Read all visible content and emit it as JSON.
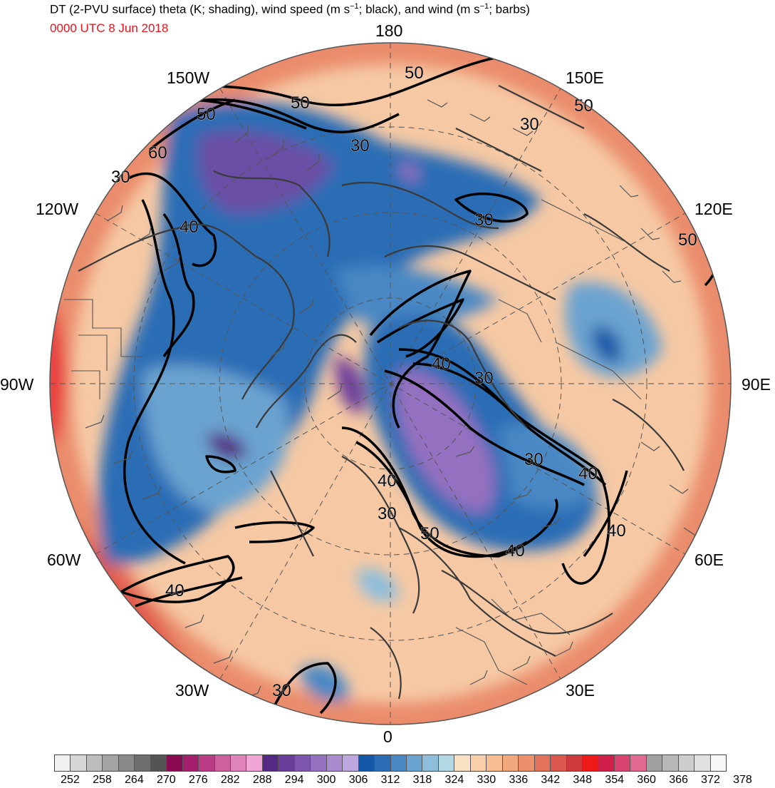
{
  "header": {
    "title_main": "DT (2-PVU surface) theta (K; shading), wind speed (m s",
    "title_sup1": "−1",
    "title_mid": "; black), and wind (m s",
    "title_sup2": "−1",
    "title_end": "; barbs)",
    "valid_time": "0000 UTC 8 Jun 2018",
    "valid_time_color": "#e8141c"
  },
  "map": {
    "projection": "north polar stereographic",
    "longitude_labels": {
      "top": "180",
      "bottom": "0",
      "left": "90W",
      "right": "90E",
      "upper_left_1": "150W",
      "upper_left_2": "120W",
      "lower_left_1": "60W",
      "lower_left_2": "30W",
      "upper_right_1": "150E",
      "upper_right_2": "120E",
      "lower_right_1": "60E",
      "lower_right_2": "30E"
    },
    "contour_labels": [
      "50",
      "50",
      "50",
      "60",
      "30",
      "30",
      "30",
      "50",
      "50",
      "40",
      "30",
      "40",
      "30",
      "40",
      "30",
      "50",
      "40",
      "30",
      "40",
      "40",
      "40",
      "30"
    ],
    "layers": {
      "shading": "theta (K)",
      "contours": "wind speed (m s−1)",
      "barbs": "wind (m s−1)"
    }
  },
  "colorbar": {
    "colors": [
      "#f0f0f0",
      "#d6d6d6",
      "#bdbdbd",
      "#a3a3a3",
      "#8a8a8a",
      "#6e6e6e",
      "#545454",
      "#8a0b52",
      "#a31f6b",
      "#b83d85",
      "#cc619e",
      "#e085bc",
      "#f2a6d6",
      "#552a85",
      "#6b3d9a",
      "#7f56ad",
      "#9470c0",
      "#a98bd0",
      "#bea6de",
      "#1458a8",
      "#2a6db5",
      "#4a88c4",
      "#6aa3d0",
      "#8dbedb",
      "#b2d8e3",
      "#fbe1c4",
      "#f9d0a9",
      "#f5bd91",
      "#f1a87d",
      "#eb906a",
      "#e2735a",
      "#d9574c",
      "#cf3a3f",
      "#ee1a1a",
      "#cf1e47",
      "#d94370",
      "#e26a91",
      "#a0a0a0",
      "#b8b8b8",
      "#cdcdcd",
      "#e1e1e1",
      "#f7f7f7"
    ],
    "tick_labels": [
      "252",
      "258",
      "264",
      "270",
      "276",
      "282",
      "288",
      "294",
      "300",
      "306",
      "312",
      "318",
      "324",
      "330",
      "336",
      "342",
      "348",
      "354",
      "360",
      "366",
      "372",
      "378"
    ]
  }
}
